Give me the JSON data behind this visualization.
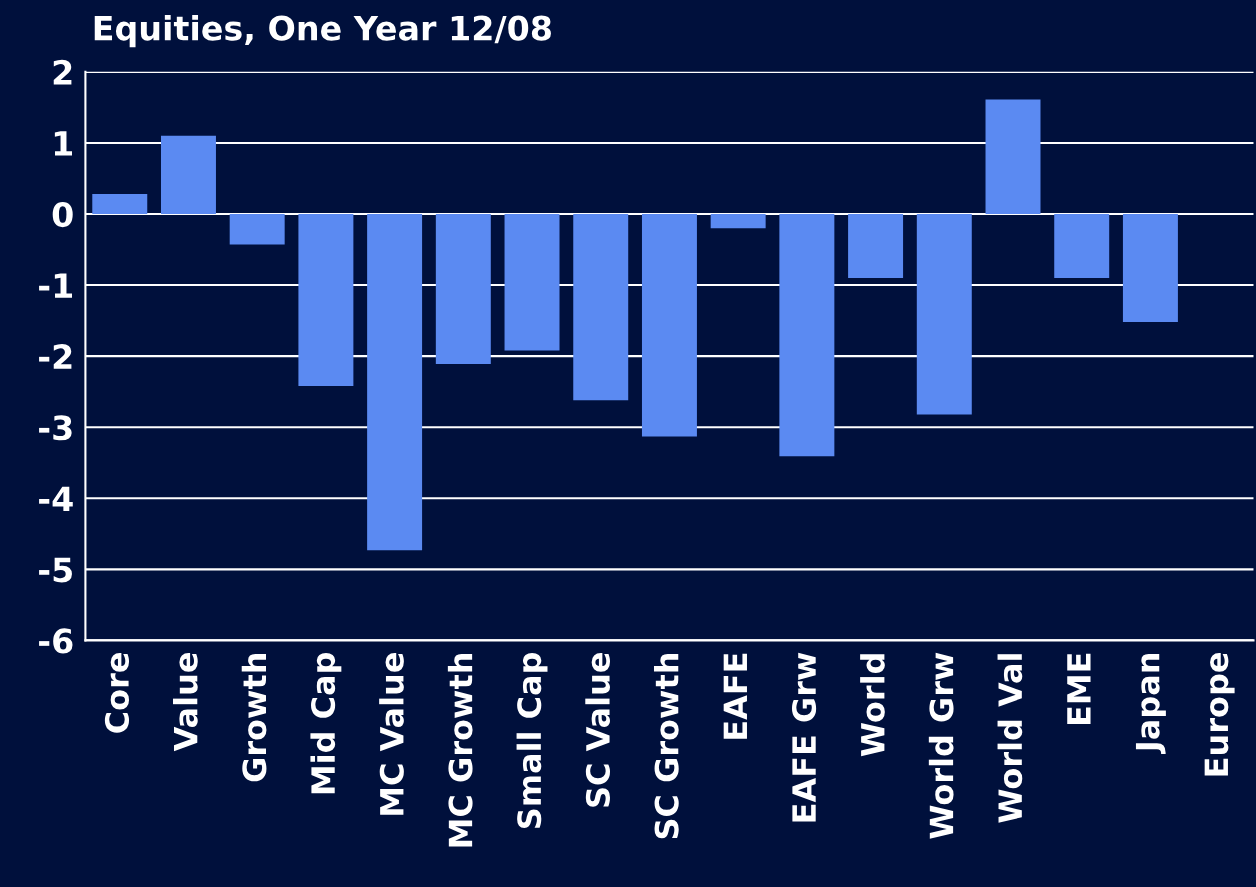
{
  "chart_data": {
    "type": "bar",
    "title": "Equities, One Year 12/08",
    "categories": [
      "Core",
      "Value",
      "Growth",
      "Mid Cap",
      "MC Value",
      "MC Growth",
      "Small Cap",
      "SC Value",
      "SC Growth",
      "EAFE",
      "EAFE Grw",
      "World",
      "World Grw",
      "World Val",
      "EME",
      "Japan",
      "Europe"
    ],
    "values": [
      0.28,
      1.1,
      -0.43,
      -2.42,
      -4.73,
      -2.11,
      -1.92,
      -2.62,
      -3.13,
      -0.2,
      -3.41,
      -0.9,
      -2.82,
      1.61,
      -0.9,
      -1.52,
      null
    ],
    "color": "#5b8af2",
    "ylim": [
      -6,
      2
    ],
    "yticks": [
      -6,
      -5,
      -4,
      -3,
      -2,
      -1,
      0,
      1,
      2
    ],
    "grid": "y",
    "legend": false
  }
}
